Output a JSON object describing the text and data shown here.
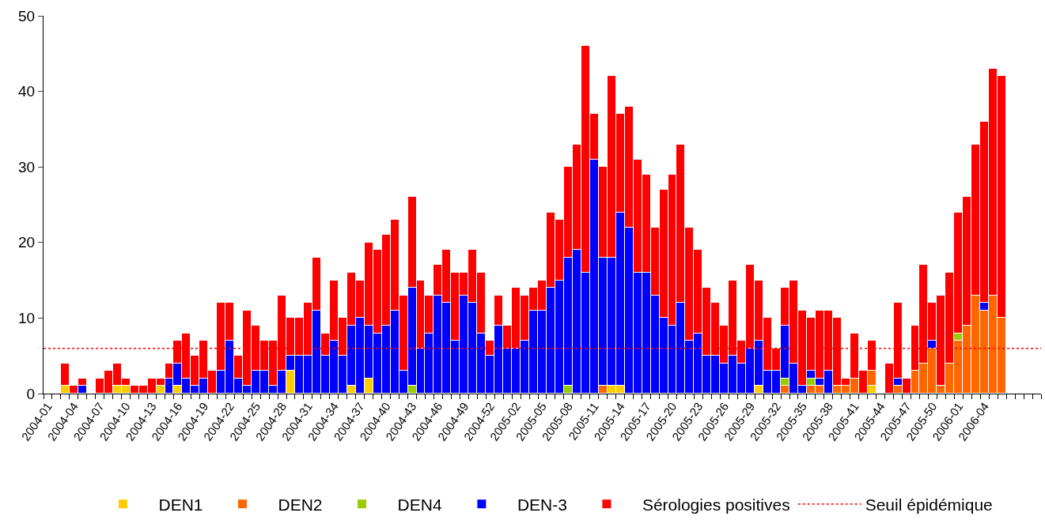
{
  "chart_data": {
    "type": "bar",
    "stacked": true,
    "categories": [
      "2004-01",
      null,
      null,
      "2004-04",
      null,
      null,
      "2004-07",
      null,
      null,
      "2004-10",
      null,
      null,
      "2004-13",
      null,
      null,
      "2004-16",
      null,
      null,
      "2004-19",
      null,
      null,
      "2004-22",
      null,
      null,
      "2004-25",
      null,
      null,
      "2004-28",
      null,
      null,
      "2004-31",
      null,
      null,
      "2004-34",
      null,
      null,
      "2004-37",
      null,
      null,
      "2004-40",
      null,
      null,
      "2004-43",
      null,
      null,
      "2004-46",
      null,
      null,
      "2004-49",
      null,
      null,
      "2004-52",
      null,
      null,
      "2005-02",
      null,
      null,
      "2005-05",
      null,
      null,
      "2005-08",
      null,
      null,
      "2005-11",
      null,
      null,
      "2005-14",
      null,
      null,
      "2005-17",
      null,
      null,
      "2005-20",
      null,
      null,
      "2005-23",
      null,
      null,
      "2005-26",
      null,
      null,
      "2005-29",
      null,
      null,
      "2005-32",
      null,
      null,
      "2005-35",
      null,
      null,
      "2005-38",
      null,
      null,
      "2005-41",
      null,
      null,
      "2005-44",
      null,
      null,
      "2005-47",
      null,
      null,
      "2005-50",
      null,
      null,
      "2006-01",
      null,
      null,
      "2006-04",
      null,
      null,
      null,
      null,
      null,
      null
    ],
    "series": [
      {
        "name": "DEN1",
        "color": "#ffcc00",
        "values": [
          null,
          null,
          1,
          null,
          null,
          null,
          null,
          null,
          1,
          1,
          null,
          null,
          null,
          1,
          null,
          1,
          null,
          null,
          null,
          null,
          null,
          null,
          null,
          null,
          null,
          null,
          null,
          null,
          3,
          null,
          null,
          null,
          null,
          null,
          null,
          1,
          null,
          2,
          null,
          null,
          null,
          null,
          null,
          null,
          null,
          null,
          null,
          null,
          null,
          null,
          null,
          null,
          null,
          null,
          null,
          null,
          null,
          null,
          null,
          null,
          null,
          null,
          null,
          null,
          null,
          1,
          1,
          null,
          null,
          null,
          null,
          null,
          null,
          null,
          null,
          null,
          null,
          null,
          null,
          null,
          null,
          null,
          1,
          null,
          null,
          null,
          null,
          null,
          null,
          null,
          null,
          null,
          null,
          null,
          null,
          1,
          null,
          null,
          null,
          null,
          null,
          null,
          null,
          null,
          null,
          null,
          null,
          null,
          null,
          null,
          null,
          null,
          null,
          null,
          null
        ]
      },
      {
        "name": "DEN2",
        "color": "#ff6600",
        "values": [
          null,
          null,
          null,
          null,
          null,
          null,
          null,
          null,
          null,
          null,
          null,
          null,
          null,
          null,
          null,
          null,
          null,
          null,
          null,
          null,
          null,
          null,
          null,
          null,
          null,
          null,
          null,
          null,
          null,
          null,
          null,
          null,
          null,
          null,
          null,
          null,
          null,
          null,
          null,
          null,
          null,
          null,
          null,
          null,
          null,
          null,
          null,
          null,
          null,
          null,
          null,
          null,
          null,
          null,
          null,
          null,
          null,
          null,
          null,
          null,
          null,
          null,
          null,
          null,
          1,
          null,
          null,
          null,
          null,
          null,
          null,
          null,
          null,
          null,
          null,
          null,
          null,
          null,
          null,
          null,
          null,
          null,
          null,
          null,
          null,
          1,
          null,
          null,
          1,
          1,
          null,
          1,
          1,
          2,
          null,
          2,
          null,
          null,
          1,
          null,
          3,
          4,
          6,
          1,
          4,
          7,
          9,
          13,
          11,
          13,
          10,
          null,
          null,
          null,
          null
        ]
      },
      {
        "name": "DEN4",
        "color": "#99cc00",
        "values": [
          null,
          null,
          null,
          null,
          null,
          null,
          null,
          null,
          null,
          null,
          null,
          null,
          null,
          null,
          null,
          null,
          null,
          null,
          null,
          null,
          null,
          null,
          null,
          null,
          null,
          null,
          null,
          null,
          null,
          null,
          null,
          null,
          null,
          null,
          null,
          null,
          null,
          null,
          null,
          null,
          null,
          null,
          1,
          null,
          null,
          null,
          null,
          null,
          null,
          null,
          null,
          null,
          null,
          null,
          null,
          null,
          null,
          null,
          null,
          null,
          1,
          null,
          null,
          null,
          null,
          null,
          null,
          null,
          null,
          null,
          null,
          null,
          null,
          null,
          null,
          null,
          null,
          null,
          null,
          null,
          null,
          null,
          null,
          null,
          null,
          1,
          null,
          null,
          1,
          null,
          null,
          null,
          null,
          null,
          null,
          null,
          null,
          null,
          null,
          null,
          null,
          null,
          null,
          null,
          null,
          1,
          null,
          null,
          null,
          null,
          null,
          null,
          null,
          null,
          null
        ]
      },
      {
        "name": "DEN-3",
        "color": "#0000ff",
        "values": [
          null,
          null,
          null,
          null,
          1,
          null,
          null,
          null,
          null,
          null,
          null,
          null,
          null,
          null,
          2,
          3,
          2,
          1,
          2,
          null,
          3,
          7,
          2,
          1,
          3,
          3,
          1,
          3,
          2,
          5,
          5,
          11,
          5,
          7,
          5,
          8,
          10,
          7,
          8,
          9,
          11,
          3,
          13,
          6,
          8,
          13,
          12,
          7,
          13,
          12,
          8,
          5,
          9,
          6,
          6,
          7,
          11,
          11,
          14,
          15,
          17,
          19,
          16,
          31,
          17,
          17,
          23,
          22,
          16,
          16,
          13,
          10,
          9,
          12,
          7,
          8,
          5,
          5,
          4,
          5,
          4,
          6,
          6,
          3,
          3,
          7,
          4,
          1,
          1,
          1,
          3,
          null,
          null,
          null,
          null,
          null,
          null,
          null,
          1,
          null,
          null,
          null,
          1,
          null,
          null,
          null,
          null,
          null,
          1,
          null,
          null,
          null,
          null,
          null,
          null
        ]
      },
      {
        "name": "Sérologies positives",
        "color": "#ff0000",
        "values": [
          null,
          null,
          3,
          1,
          1,
          null,
          2,
          3,
          3,
          1,
          1,
          1,
          2,
          1,
          2,
          3,
          6,
          4,
          5,
          3,
          9,
          5,
          3,
          10,
          6,
          4,
          6,
          10,
          5,
          5,
          7,
          7,
          3,
          8,
          5,
          7,
          5,
          11,
          11,
          12,
          12,
          10,
          12,
          9,
          5,
          4,
          7,
          9,
          3,
          7,
          8,
          2,
          4,
          3,
          8,
          6,
          3,
          4,
          10,
          8,
          12,
          14,
          30,
          6,
          12,
          24,
          13,
          16,
          15,
          13,
          9,
          17,
          20,
          21,
          15,
          11,
          9,
          7,
          5,
          10,
          3,
          11,
          8,
          7,
          3,
          5,
          11,
          10,
          7,
          9,
          8,
          9,
          1,
          6,
          3,
          4,
          null,
          4,
          10,
          2,
          6,
          13,
          5,
          12,
          12,
          16,
          17,
          20,
          24,
          30,
          32,
          null,
          null,
          null,
          null
        ]
      }
    ],
    "ylim": [
      0,
      50
    ],
    "yticks": [
      0,
      10,
      20,
      30,
      40,
      50
    ],
    "legend": "bottom",
    "ref_lines": [
      {
        "axis": "y",
        "value": 6,
        "label": "Seuil épidémique",
        "color": "#ff0000",
        "line_style": "dotted"
      }
    ]
  }
}
